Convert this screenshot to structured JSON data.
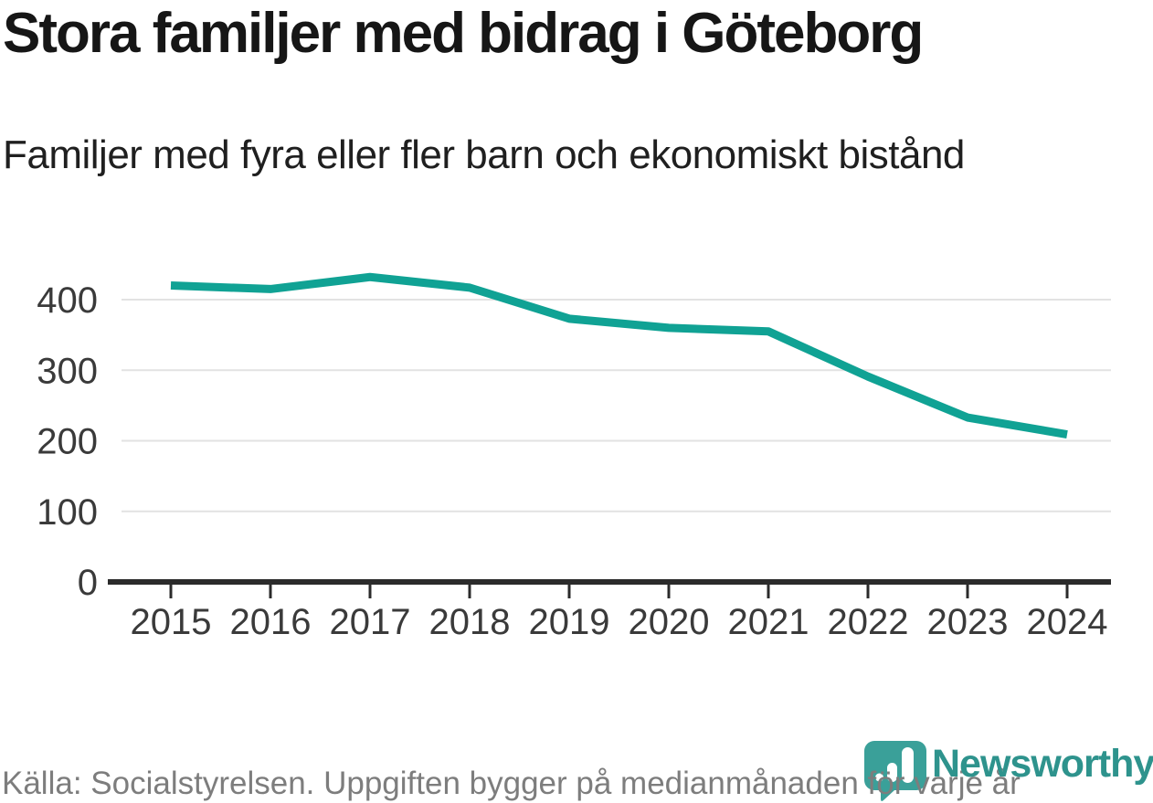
{
  "chart_data": {
    "type": "line",
    "title": "Stora familjer med bidrag i Göteborg",
    "subtitle": "Familjer med fyra eller fler barn och ekonomiskt bistånd",
    "x": [
      2015,
      2016,
      2017,
      2018,
      2019,
      2020,
      2021,
      2022,
      2023,
      2024
    ],
    "series": [
      {
        "name": "Familjer med fyra eller fler barn och ekonomiskt bistånd",
        "values": [
          420,
          415,
          432,
          417,
          373,
          360,
          355,
          291,
          233,
          209
        ]
      }
    ],
    "xlabel": "",
    "ylabel": "",
    "ylim": [
      0,
      450
    ],
    "yticks": [
      0,
      100,
      200,
      300,
      400
    ],
    "grid": "horizontal",
    "legend_position": "none",
    "line_color": "#10a294",
    "gridline_color": "#e2e2e2",
    "axis_color": "#2b2b2b",
    "tick_label_color": "#3a3a3a"
  },
  "footer": {
    "source": "Källa: Socialstyrelsen. Uppgiften bygger på medianmånaden för varje år"
  },
  "branding": {
    "wordmark": "Newsworthy",
    "pin_color": "#3aa099",
    "wordmark_color": "#2e938d"
  }
}
